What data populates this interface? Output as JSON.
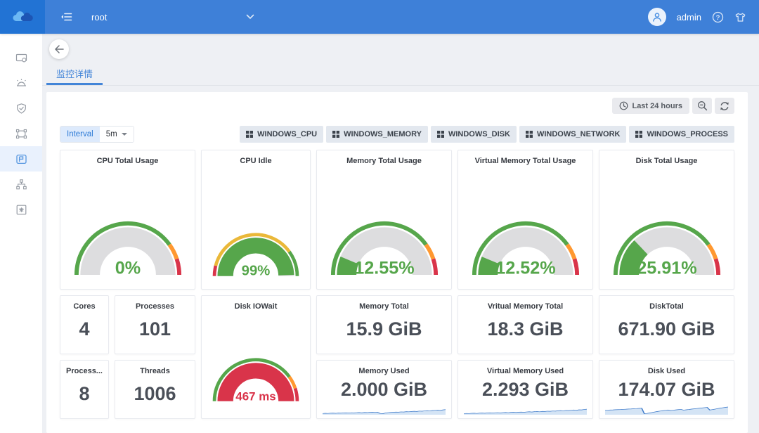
{
  "colors": {
    "header_blue": "#3e80d8",
    "logo_blue": "#2273d4",
    "accent_blue": "#4385d8",
    "green": "#56a64b",
    "yellow": "#eab839",
    "orange": "#ff9830",
    "red": "#d9344a",
    "gauge_track": "#dddddf",
    "spark_line": "#3a78c9",
    "spark_fill": "#d4e4f5"
  },
  "header": {
    "project": "root",
    "user": "admin"
  },
  "sidebar": {
    "items": [
      "hosts",
      "alerts",
      "security",
      "cluster",
      "monitoring",
      "topology",
      "apps"
    ],
    "active": "monitoring"
  },
  "page": {
    "tab": "监控详情"
  },
  "toolbar": {
    "time_range": "Last 24 hours",
    "interval_label": "Interval",
    "interval_value": "5m",
    "dashboards": [
      "WINDOWS_CPU",
      "WINDOWS_MEMORY",
      "WINDOWS_DISK",
      "WINDOWS_NETWORK",
      "WINDOWS_PROCESS"
    ]
  },
  "stats": [
    {
      "title": "Cores",
      "value": "4"
    },
    {
      "title": "Processes",
      "value": "101"
    },
    {
      "title": "Process...",
      "value": "8"
    },
    {
      "title": "Threads",
      "value": "1006"
    },
    {
      "title": "Memory Total",
      "value": "15.9 GiB"
    },
    {
      "title": "Vritual Memory Total",
      "value": "18.3 GiB"
    },
    {
      "title": "DiskTotal",
      "value": "671.90 GiB"
    }
  ],
  "chart_data": {
    "gauges": [
      {
        "type": "gauge",
        "title": "CPU Total Usage",
        "value": 0,
        "unit": "%",
        "display": "0%",
        "pct": 0,
        "range": [
          0,
          100
        ],
        "fill": "#56a64b",
        "text": "#56a64b",
        "thresholds": [
          {
            "from": 0,
            "to": 80,
            "color": "#56a64b"
          },
          {
            "from": 80,
            "to": 90,
            "color": "#ff9830"
          },
          {
            "from": 90,
            "to": 100,
            "color": "#d9344a"
          }
        ]
      },
      {
        "type": "gauge",
        "title": "CPU Idle",
        "value": 99,
        "unit": "%",
        "display": "99%",
        "pct": 99,
        "range": [
          0,
          100
        ],
        "fill": "#56a64b",
        "text": "#56a64b",
        "thresholds": [
          {
            "from": 0,
            "to": 8,
            "color": "#d9344a"
          },
          {
            "from": 8,
            "to": 80,
            "color": "#eab839"
          },
          {
            "from": 80,
            "to": 100,
            "color": "#56a64b"
          }
        ]
      },
      {
        "type": "gauge",
        "title": "Memory Total Usage",
        "value": 12.55,
        "unit": "%",
        "display": "12.55%",
        "pct": 12.55,
        "range": [
          0,
          100
        ],
        "fill": "#56a64b",
        "text": "#56a64b",
        "thresholds": [
          {
            "from": 0,
            "to": 80,
            "color": "#56a64b"
          },
          {
            "from": 80,
            "to": 90,
            "color": "#ff9830"
          },
          {
            "from": 90,
            "to": 100,
            "color": "#d9344a"
          }
        ]
      },
      {
        "type": "gauge",
        "title": "Virtual Memory Total Usage",
        "value": 12.52,
        "unit": "%",
        "display": "12.52%",
        "pct": 12.52,
        "range": [
          0,
          100
        ],
        "fill": "#56a64b",
        "text": "#56a64b",
        "thresholds": [
          {
            "from": 0,
            "to": 80,
            "color": "#56a64b"
          },
          {
            "from": 80,
            "to": 90,
            "color": "#ff9830"
          },
          {
            "from": 90,
            "to": 100,
            "color": "#d9344a"
          }
        ]
      },
      {
        "type": "gauge",
        "title": "Disk Total Usage",
        "value": 25.91,
        "unit": "%",
        "display": "25.91%",
        "pct": 25.91,
        "range": [
          0,
          100
        ],
        "fill": "#56a64b",
        "text": "#56a64b",
        "thresholds": [
          {
            "from": 0,
            "to": 80,
            "color": "#56a64b"
          },
          {
            "from": 80,
            "to": 90,
            "color": "#ff9830"
          },
          {
            "from": 90,
            "to": 100,
            "color": "#d9344a"
          }
        ]
      }
    ],
    "iowait": {
      "type": "gauge",
      "title": "Disk IOWait",
      "value": 467,
      "unit": "ms",
      "display": "467 ms",
      "pct": 100,
      "fill": "#d9344a",
      "text": "#d9344a",
      "thresholds": [
        {
          "from": 0,
          "to": 80,
          "color": "#56a64b"
        },
        {
          "from": 80,
          "to": 90,
          "color": "#ff9830"
        },
        {
          "from": 90,
          "to": 100,
          "color": "#d9344a"
        }
      ]
    },
    "sparklines": [
      {
        "type": "area",
        "title": "Memory Used",
        "value": "2.000 GiB",
        "points": [
          8,
          10,
          9,
          11,
          12,
          10,
          13,
          12,
          14,
          15,
          13,
          16,
          15,
          17,
          18,
          16,
          19,
          18,
          20,
          22,
          19,
          21,
          9,
          6,
          13,
          17,
          19,
          21,
          23,
          22,
          25,
          24,
          27,
          26,
          29,
          31,
          29,
          33,
          32,
          35,
          37,
          34,
          39,
          41,
          43,
          40,
          45,
          48
        ]
      },
      {
        "type": "area",
        "title": "Virtual Memory Used",
        "value": "2.293 GiB",
        "points": [
          7,
          9,
          8,
          10,
          11,
          9,
          12,
          13,
          11,
          14,
          15,
          13,
          16,
          17,
          15,
          18,
          19,
          17,
          20,
          21,
          19,
          22,
          23,
          21,
          24,
          26,
          24,
          27,
          28,
          26,
          30,
          29,
          32,
          31,
          34,
          33,
          36,
          38,
          35,
          40,
          39,
          42,
          44,
          41,
          46,
          45,
          49,
          52
        ]
      },
      {
        "type": "area",
        "title": "Disk Used",
        "value": "174.07 GiB",
        "points": [
          42,
          43,
          44,
          45,
          47,
          48,
          49,
          51,
          52,
          54,
          55,
          57,
          58,
          60,
          62,
          6,
          9,
          14,
          19,
          24,
          29,
          33,
          37,
          41,
          44,
          39,
          42,
          45,
          48,
          50,
          43,
          46,
          49,
          53,
          56,
          59,
          62,
          65,
          68,
          71,
          44,
          48,
          53,
          58,
          63,
          67,
          71,
          75
        ]
      }
    ]
  }
}
